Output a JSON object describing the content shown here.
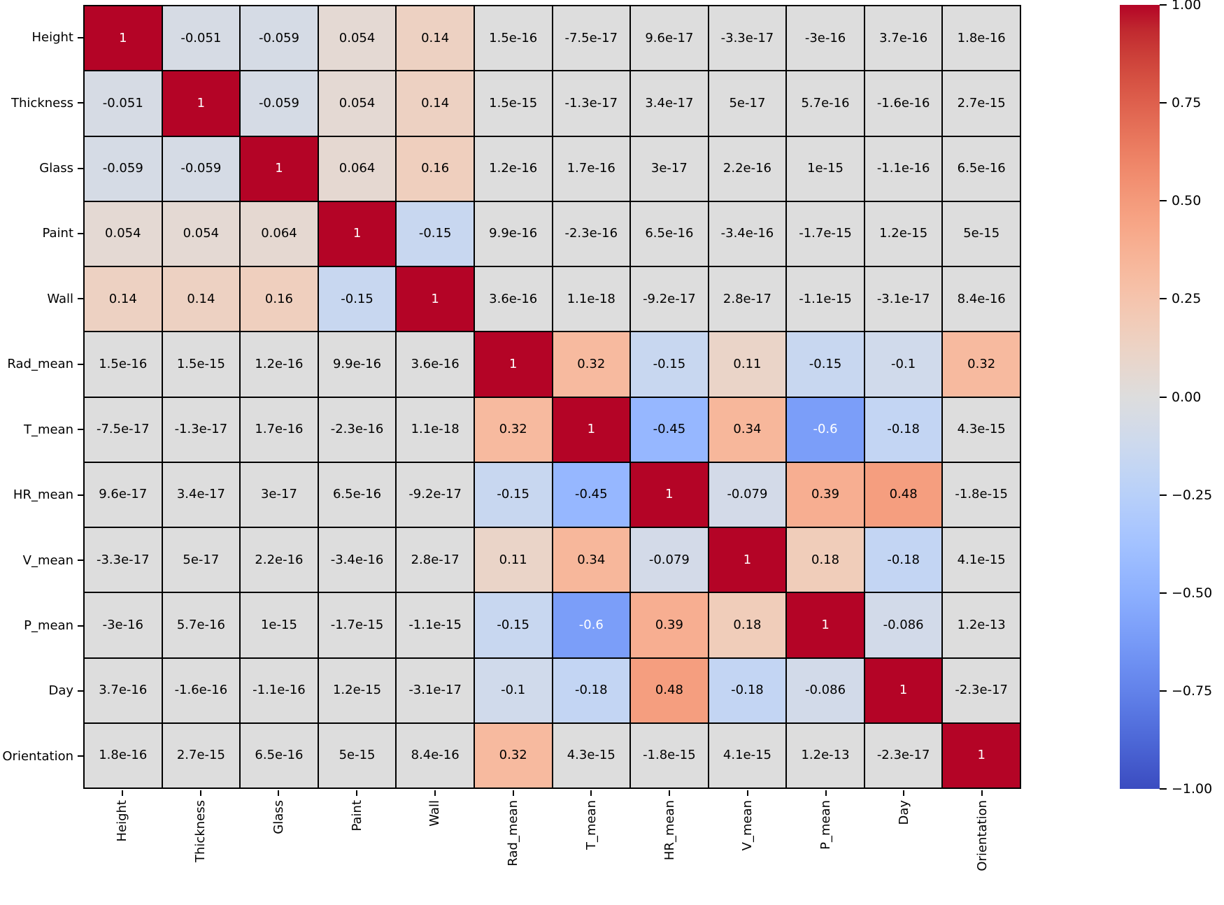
{
  "figure": {
    "background": "#ffffff",
    "grid_line_color": "#000000"
  },
  "chart_data": {
    "type": "heatmap",
    "title": "",
    "description": "Correlation matrix heatmap with annotated coefficients",
    "categories": [
      "Height",
      "Thickness",
      "Glass",
      "Paint",
      "Wall",
      "Rad_mean",
      "T_mean",
      "HR_mean",
      "V_mean",
      "P_mean",
      "Day",
      "Orientation"
    ],
    "matrix": [
      [
        "1",
        "-0.051",
        "-0.059",
        "0.054",
        "0.14",
        "1.5e-16",
        "-7.5e-17",
        "9.6e-17",
        "-3.3e-17",
        "-3e-16",
        "3.7e-16",
        "1.8e-16"
      ],
      [
        "-0.051",
        "1",
        "-0.059",
        "0.054",
        "0.14",
        "1.5e-15",
        "-1.3e-17",
        "3.4e-17",
        "5e-17",
        "5.7e-16",
        "-1.6e-16",
        "2.7e-15"
      ],
      [
        "-0.059",
        "-0.059",
        "1",
        "0.064",
        "0.16",
        "1.2e-16",
        "1.7e-16",
        "3e-17",
        "2.2e-16",
        "1e-15",
        "-1.1e-16",
        "6.5e-16"
      ],
      [
        "0.054",
        "0.054",
        "0.064",
        "1",
        "-0.15",
        "9.9e-16",
        "-2.3e-16",
        "6.5e-16",
        "-3.4e-16",
        "-1.7e-15",
        "1.2e-15",
        "5e-15"
      ],
      [
        "0.14",
        "0.14",
        "0.16",
        "-0.15",
        "1",
        "3.6e-16",
        "1.1e-18",
        "-9.2e-17",
        "2.8e-17",
        "-1.1e-15",
        "-3.1e-17",
        "8.4e-16"
      ],
      [
        "1.5e-16",
        "1.5e-15",
        "1.2e-16",
        "9.9e-16",
        "3.6e-16",
        "1",
        "0.32",
        "-0.15",
        "0.11",
        "-0.15",
        "-0.1",
        "0.32"
      ],
      [
        "-7.5e-17",
        "-1.3e-17",
        "1.7e-16",
        "-2.3e-16",
        "1.1e-18",
        "0.32",
        "1",
        "-0.45",
        "0.34",
        "-0.6",
        "-0.18",
        "4.3e-15"
      ],
      [
        "9.6e-17",
        "3.4e-17",
        "3e-17",
        "6.5e-16",
        "-9.2e-17",
        "-0.15",
        "-0.45",
        "1",
        "-0.079",
        "0.39",
        "0.48",
        "-1.8e-15"
      ],
      [
        "-3.3e-17",
        "5e-17",
        "2.2e-16",
        "-3.4e-16",
        "2.8e-17",
        "0.11",
        "0.34",
        "-0.079",
        "1",
        "0.18",
        "-0.18",
        "4.1e-15"
      ],
      [
        "-3e-16",
        "5.7e-16",
        "1e-15",
        "-1.7e-15",
        "-1.1e-15",
        "-0.15",
        "-0.6",
        "0.39",
        "0.18",
        "1",
        "-0.086",
        "1.2e-13"
      ],
      [
        "3.7e-16",
        "-1.6e-16",
        "-1.1e-16",
        "1.2e-15",
        "-3.1e-17",
        "-0.1",
        "-0.18",
        "0.48",
        "-0.18",
        "-0.086",
        "1",
        "-2.3e-17"
      ],
      [
        "1.8e-16",
        "2.7e-15",
        "6.5e-16",
        "5e-15",
        "8.4e-16",
        "0.32",
        "4.3e-15",
        "-1.8e-15",
        "4.1e-15",
        "1.2e-13",
        "-2.3e-17",
        "1"
      ]
    ],
    "value_range": [
      -1,
      1
    ],
    "legend_position": "right",
    "colorbar_ticks": [
      "1.00",
      "0.75",
      "0.50",
      "0.25",
      "0.00",
      "−0.25",
      "−0.50",
      "−0.75",
      "−1.00"
    ],
    "colormap": {
      "name": "coolwarm",
      "stops": [
        "#3B4CC0",
        "#445ACC",
        "#4D68D7",
        "#5775E1",
        "#6282EA",
        "#6C8EF1",
        "#779AF7",
        "#82A5FB",
        "#8DB0FE",
        "#98B9FF",
        "#A3C2FF",
        "#AEC9FD",
        "#B8D0F9",
        "#C2D5F4",
        "#CCD9EE",
        "#D5DBE6",
        "#DDDDDD",
        "#E5D8D1",
        "#ECD3C5",
        "#F1CCB9",
        "#F5C4AD",
        "#F7BBA0",
        "#F7B194",
        "#F7A687",
        "#F49A7B",
        "#F18D6F",
        "#EC7F63",
        "#E57058",
        "#DE604D",
        "#D55042",
        "#CB3E38",
        "#C0282F",
        "#B40426"
      ]
    },
    "annotation_colors": {
      "dark_text": "#000000",
      "light_text": "#ffffff"
    }
  }
}
